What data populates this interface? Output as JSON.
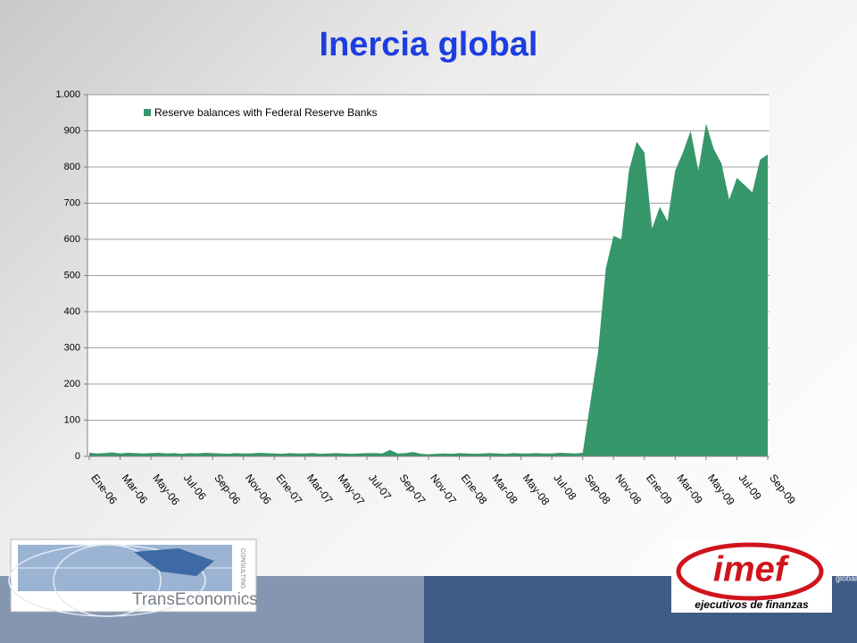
{
  "chart_data": {
    "type": "area",
    "title": "Inercia global",
    "categories": [
      "Ene-06",
      null,
      null,
      null,
      "Mar-06",
      null,
      null,
      null,
      "May-06",
      null,
      null,
      null,
      "Jul-06",
      null,
      null,
      null,
      "Sep-06",
      null,
      null,
      null,
      "Nov-06",
      null,
      null,
      null,
      "Ene-07",
      null,
      null,
      null,
      "Mar-07",
      null,
      null,
      null,
      "May-07",
      null,
      null,
      null,
      "Jul-07",
      null,
      null,
      null,
      "Sep-07",
      null,
      null,
      null,
      "Nov-07",
      null,
      null,
      null,
      "Ene-08",
      null,
      null,
      null,
      "Mar-08",
      null,
      null,
      null,
      "May-08",
      null,
      null,
      null,
      "Jul-08",
      null,
      null,
      null,
      "Sep-08",
      null,
      null,
      null,
      "Nov-08",
      null,
      null,
      null,
      "Ene-09",
      null,
      null,
      null,
      "Mar-09",
      null,
      null,
      null,
      "May-09",
      null,
      null,
      null,
      "Jul-09",
      null,
      null,
      null,
      "Sep-09"
    ],
    "series": [
      {
        "name": "Reserve balances with Federal Reserve Banks",
        "color": "#36976a",
        "values": [
          10,
          8,
          9,
          11,
          8,
          10,
          9,
          8,
          9,
          10,
          8,
          9,
          7,
          9,
          8,
          10,
          9,
          8,
          7,
          9,
          8,
          8,
          10,
          9,
          8,
          7,
          9,
          8,
          8,
          9,
          7,
          8,
          9,
          8,
          7,
          8,
          9,
          9,
          8,
          18,
          8,
          9,
          12,
          7,
          6,
          7,
          8,
          7,
          9,
          8,
          7,
          8,
          9,
          8,
          7,
          9,
          8,
          8,
          9,
          8,
          8,
          10,
          9,
          8,
          10,
          150,
          290,
          520,
          610,
          600,
          790,
          870,
          840,
          630,
          690,
          650,
          790,
          840,
          900,
          790,
          920,
          850,
          810,
          710,
          770,
          750,
          730,
          820,
          835
        ]
      }
    ],
    "ylim": [
      0,
      1000
    ],
    "yticks": [
      0,
      100,
      200,
      300,
      400,
      500,
      600,
      700,
      800,
      900,
      {
        "value": 1000,
        "label": "1.000"
      }
    ],
    "grid": true,
    "legend": "top-left"
  },
  "logos": {
    "left": "TransEconomics",
    "left_sub": "CONSULTING",
    "right": "imef",
    "right_sub": "ejecutivos de finanzas"
  },
  "footer": "global"
}
